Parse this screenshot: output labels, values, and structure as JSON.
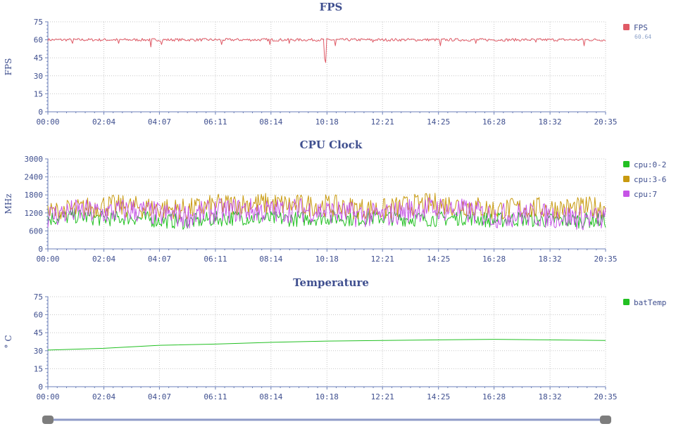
{
  "theme": {
    "axis": "#6b7fb8",
    "text": "#3f4f8f",
    "grid": "#c7c7c7",
    "slider_track": "#8f9bc8",
    "slider_handle": "#7d7d7d"
  },
  "chart_data": [
    {
      "type": "line",
      "title": "FPS",
      "ylabel": "FPS",
      "ylim": [
        0,
        75
      ],
      "yticks": [
        0,
        15,
        30,
        45,
        60,
        75
      ],
      "xticks": [
        "00:00",
        "02:04",
        "04:07",
        "06:11",
        "08:14",
        "10:18",
        "12:21",
        "14:25",
        "16:28",
        "18:32",
        "20:35"
      ],
      "x_range": [
        "00:00",
        "20:35"
      ],
      "grid": true,
      "legend_position": "right",
      "series": [
        {
          "name": "FPS",
          "color": "#e05a66",
          "legend_value": "60.64",
          "style": "jittered-line",
          "base": [
            60,
            60,
            60,
            60,
            60,
            60,
            60,
            60,
            60,
            60,
            60,
            60,
            60,
            60,
            60,
            60,
            60,
            60,
            60,
            60,
            60
          ],
          "noise": 1.2,
          "dips": [
            [
              0.9,
              57
            ],
            [
              2.6,
              57
            ],
            [
              3.8,
              54
            ],
            [
              4.2,
              56
            ],
            [
              6.4,
              56
            ],
            [
              8.2,
              56
            ],
            [
              8.9,
              57
            ],
            [
              10.2,
              44
            ],
            [
              10.25,
              41
            ],
            [
              10.6,
              55
            ],
            [
              12.0,
              58
            ],
            [
              14.5,
              55
            ],
            [
              15.8,
              57
            ],
            [
              18.0,
              58
            ],
            [
              19.8,
              55
            ]
          ]
        }
      ]
    },
    {
      "type": "line",
      "title": "CPU Clock",
      "ylabel": "MHz",
      "ylim": [
        0,
        3000
      ],
      "yticks": [
        0,
        600,
        1200,
        1800,
        2400,
        3000
      ],
      "xticks": [
        "00:00",
        "02:04",
        "04:07",
        "06:11",
        "08:14",
        "10:18",
        "12:21",
        "14:25",
        "16:28",
        "18:32",
        "20:35"
      ],
      "x_range": [
        "00:00",
        "20:35"
      ],
      "grid": true,
      "legend_position": "right",
      "series": [
        {
          "name": "cpu:0-2",
          "color": "#22c022",
          "style": "jittered-line",
          "base": [
            1000,
            1100,
            1000,
            1050,
            950,
            900,
            1000,
            1050,
            1000,
            1000,
            1050,
            1000,
            1050,
            1000,
            1000,
            1050,
            950,
            1000,
            950,
            950,
            950
          ],
          "noise": 260,
          "floor": 580,
          "ceil": 1450
        },
        {
          "name": "cpu:3-6",
          "color": "#c89a10",
          "style": "jittered-line",
          "base": [
            1200,
            1300,
            1450,
            1400,
            1350,
            1300,
            1450,
            1500,
            1500,
            1450,
            1450,
            1350,
            1300,
            1450,
            1500,
            1450,
            1300,
            1350,
            1350,
            1350,
            1400
          ],
          "noise": 380,
          "floor": 1000,
          "ceil": 2350
        },
        {
          "name": "cpu:7",
          "color": "#c654e6",
          "style": "jittered-line",
          "base": [
            1100,
            1250,
            1200,
            1300,
            1150,
            1100,
            1250,
            1300,
            1250,
            1300,
            1250,
            1150,
            1100,
            1300,
            1350,
            1250,
            1100,
            1150,
            1100,
            1050,
            1000
          ],
          "noise": 420,
          "floor": 600,
          "ceil": 2300
        }
      ]
    },
    {
      "type": "line",
      "title": "Temperature",
      "ylabel": "° C",
      "ylim": [
        0,
        75
      ],
      "yticks": [
        0,
        15,
        30,
        45,
        60,
        75
      ],
      "xticks": [
        "00:00",
        "02:04",
        "04:07",
        "06:11",
        "08:14",
        "10:18",
        "12:21",
        "14:25",
        "16:28",
        "18:32",
        "20:35"
      ],
      "x_range": [
        "00:00",
        "20:35"
      ],
      "grid": true,
      "legend_position": "right",
      "series": [
        {
          "name": "batTemp",
          "color": "#22c022",
          "style": "smooth-line",
          "x": [
            "00:00",
            "02:04",
            "04:07",
            "06:11",
            "08:14",
            "10:18",
            "12:21",
            "14:25",
            "16:28",
            "18:32",
            "20:35"
          ],
          "values": [
            30.5,
            32,
            34.5,
            35.5,
            37,
            38,
            38.5,
            39,
            39.5,
            39,
            38.5
          ]
        }
      ]
    }
  ],
  "zoom_slider": {
    "start": 0,
    "end": 1
  }
}
